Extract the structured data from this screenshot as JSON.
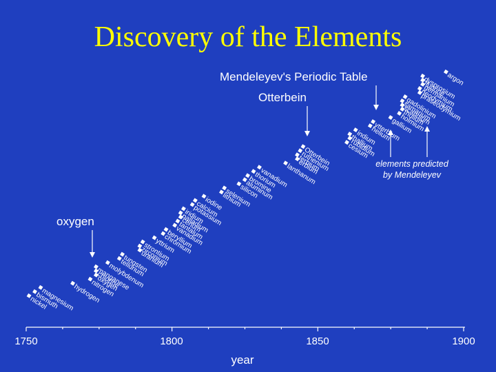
{
  "title": "Discovery of the Elements",
  "chart_data": {
    "type": "scatter",
    "xlabel": "year",
    "xlim": [
      1750,
      1900
    ],
    "ticks": [
      "1750",
      "1800",
      "1850",
      "1900"
    ],
    "points": [
      {
        "year": 1751,
        "element": "nickel"
      },
      {
        "year": 1753,
        "element": "bismuth"
      },
      {
        "year": 1755,
        "element": "magnesium"
      },
      {
        "year": 1766,
        "element": "hydrogen"
      },
      {
        "year": 1772,
        "element": "nitrogen"
      },
      {
        "year": 1774,
        "element": "oxygen"
      },
      {
        "year": 1774,
        "element": "chlorine"
      },
      {
        "year": 1774,
        "element": "manganese"
      },
      {
        "year": 1778,
        "element": "molybdenum"
      },
      {
        "year": 1782,
        "element": "tellurium"
      },
      {
        "year": 1783,
        "element": "tungsten"
      },
      {
        "year": 1789,
        "element": "uranium"
      },
      {
        "year": 1789,
        "element": "zirconium"
      },
      {
        "year": 1790,
        "element": "strontium"
      },
      {
        "year": 1794,
        "element": "yttrium"
      },
      {
        "year": 1797,
        "element": "chromium"
      },
      {
        "year": 1798,
        "element": "beryllium"
      },
      {
        "year": 1801,
        "element": "vanadium"
      },
      {
        "year": 1802,
        "element": "tantalum"
      },
      {
        "year": 1803,
        "element": "cerium"
      },
      {
        "year": 1803,
        "element": "palladium"
      },
      {
        "year": 1804,
        "element": "iridium"
      },
      {
        "year": 1807,
        "element": "potassium"
      },
      {
        "year": 1808,
        "element": "calcium"
      },
      {
        "year": 1811,
        "element": "iodine"
      },
      {
        "year": 1817,
        "element": "lithium"
      },
      {
        "year": 1818,
        "element": "selenium"
      },
      {
        "year": 1823,
        "element": "silicon"
      },
      {
        "year": 1825,
        "element": "aluminum"
      },
      {
        "year": 1826,
        "element": "bromine"
      },
      {
        "year": 1828,
        "element": "thorium"
      },
      {
        "year": 1830,
        "element": "vanadium"
      },
      {
        "year": 1839,
        "element": "lanthanum"
      },
      {
        "year": 1843,
        "element": "erbium"
      },
      {
        "year": 1843,
        "element": "terbium"
      },
      {
        "year": 1844,
        "element": "ruthenium"
      },
      {
        "year": 1845,
        "element": "Otterbein"
      },
      {
        "year": 1860,
        "element": "cesium"
      },
      {
        "year": 1861,
        "element": "rubidium"
      },
      {
        "year": 1861,
        "element": "thallium"
      },
      {
        "year": 1863,
        "element": "indium"
      },
      {
        "year": 1868,
        "element": "helium"
      },
      {
        "year": 1869,
        "element": "ytterbium"
      },
      {
        "year": 1875,
        "element": "gallium"
      },
      {
        "year": 1878,
        "element": "holmium"
      },
      {
        "year": 1879,
        "element": "thulium"
      },
      {
        "year": 1879,
        "element": "scandium"
      },
      {
        "year": 1879,
        "element": "samarium"
      },
      {
        "year": 1880,
        "element": "gadolinium"
      },
      {
        "year": 1885,
        "element": "praseodymium"
      },
      {
        "year": 1885,
        "element": "neodymium"
      },
      {
        "year": 1886,
        "element": "germanium"
      },
      {
        "year": 1886,
        "element": "fluorine"
      },
      {
        "year": 1886,
        "element": "dysprosium"
      },
      {
        "year": 1894,
        "element": "argon"
      }
    ],
    "annotations": {
      "oxygen": "oxygen",
      "otterbein": "Otterbein",
      "periodic_table": "Mendeleyev's Periodic Table",
      "predicted_line1": "elements predicted",
      "predicted_line2": "by Mendeleyev"
    }
  }
}
